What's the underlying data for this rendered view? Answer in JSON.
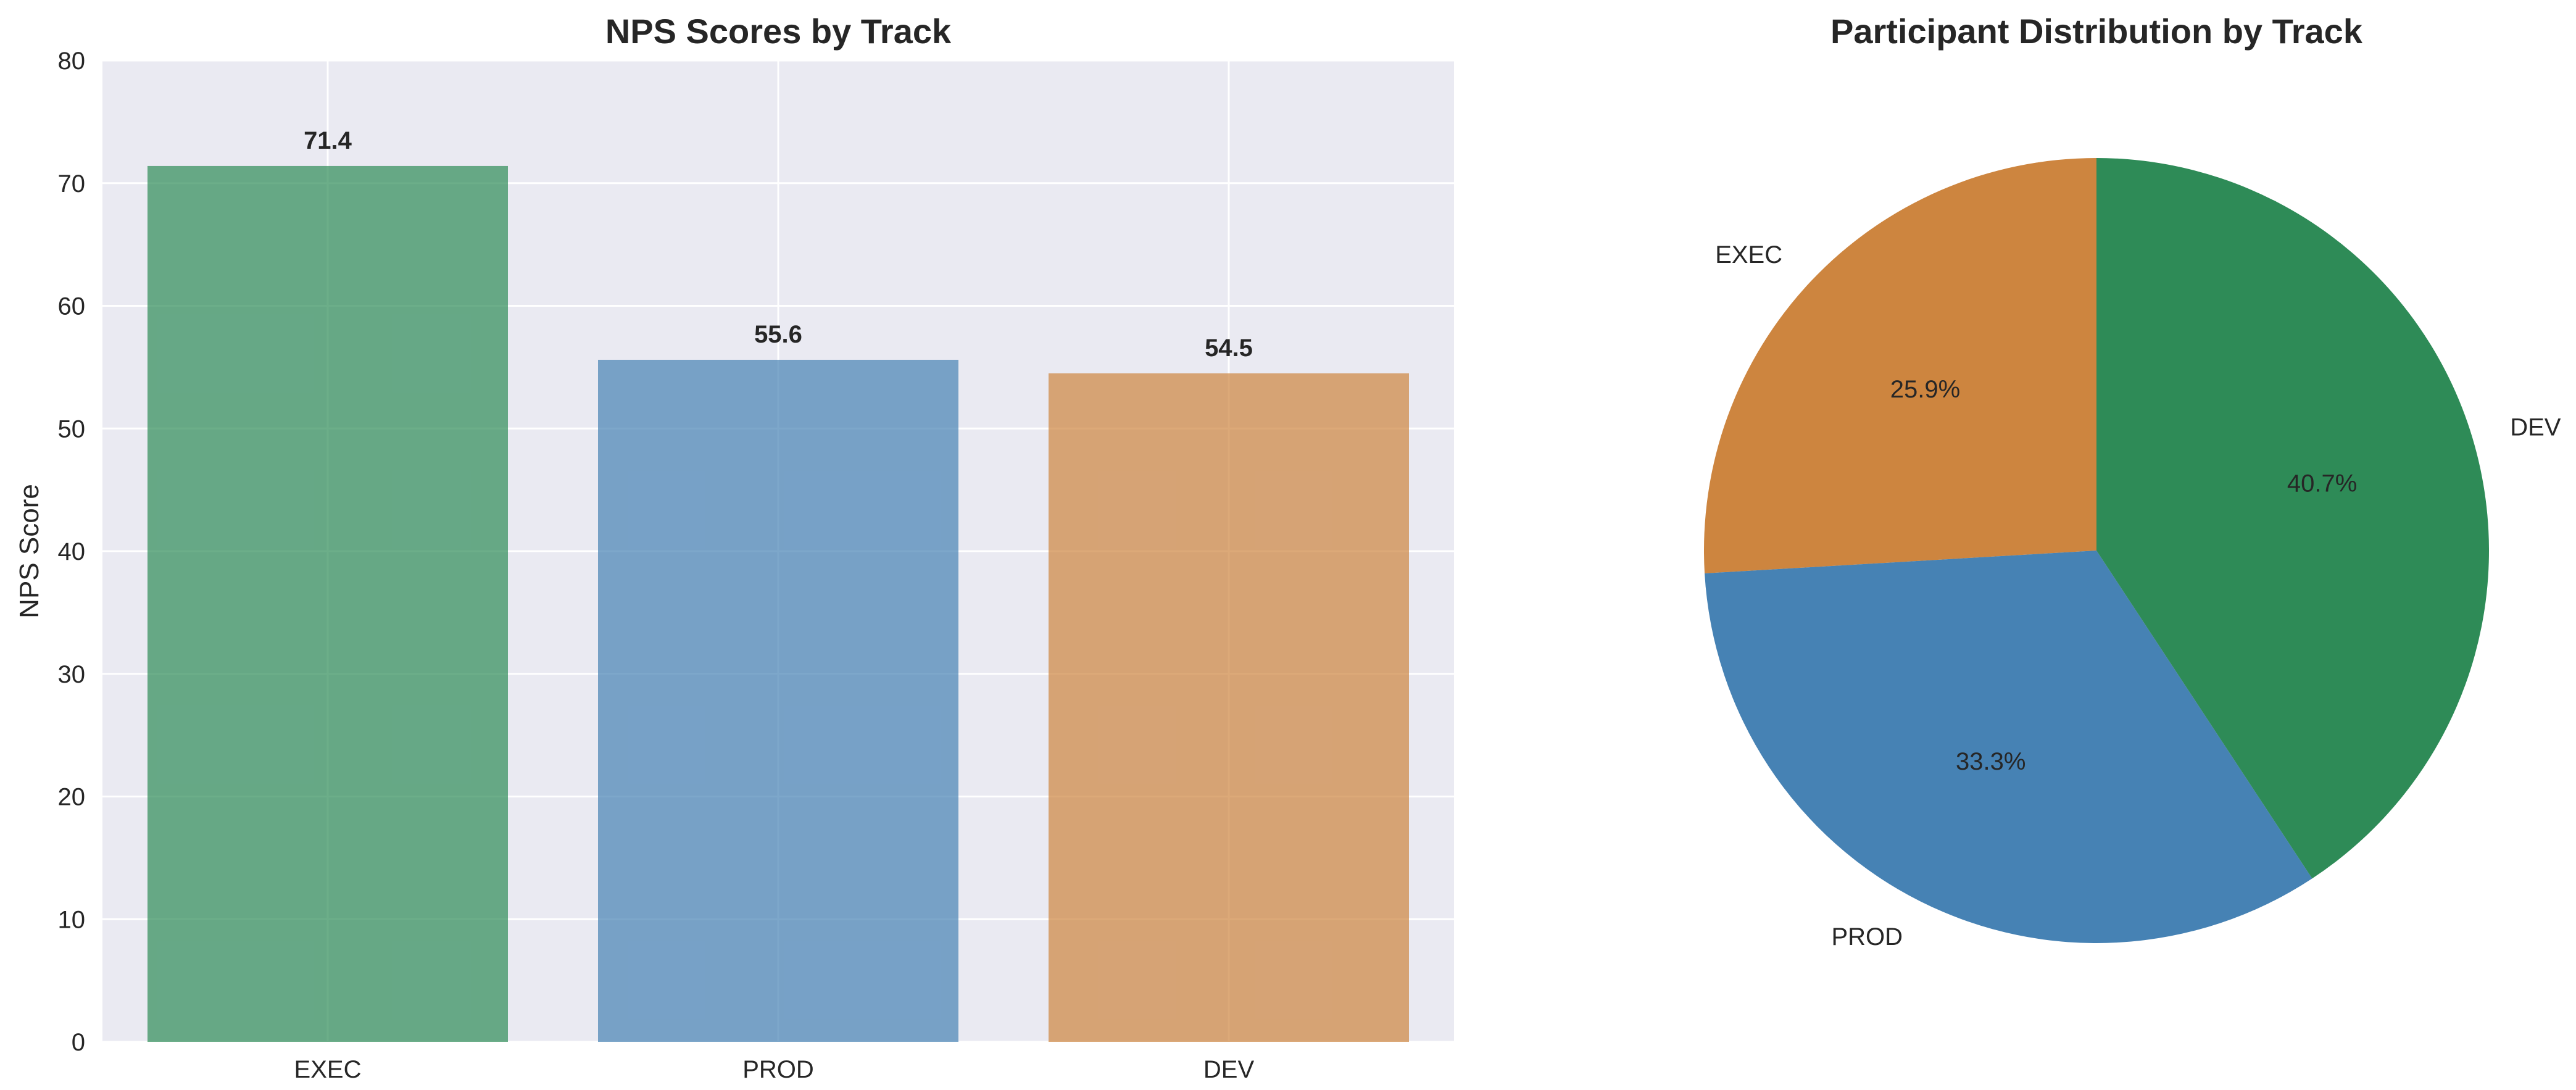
{
  "chart_data": [
    {
      "type": "bar",
      "title": "NPS Scores by Track",
      "xlabel": "",
      "ylabel": "NPS Score",
      "categories": [
        "EXEC",
        "PROD",
        "DEV"
      ],
      "values": [
        71.4,
        55.6,
        54.5
      ],
      "value_labels": [
        "71.4",
        "55.6",
        "54.5"
      ],
      "colors": [
        "#2e8b57",
        "#4682b4",
        "#cd853f"
      ],
      "ylim": [
        0,
        80
      ],
      "yticks": [
        0,
        10,
        20,
        30,
        40,
        50,
        60,
        70,
        80
      ],
      "grid": true,
      "background": "#eaeaf2"
    },
    {
      "type": "pie",
      "title": "Participant Distribution by Track",
      "labels": [
        "EXEC",
        "PROD",
        "DEV"
      ],
      "values": [
        25.9,
        33.3,
        40.7
      ],
      "pct_labels": [
        "25.9%",
        "33.3%",
        "40.7%"
      ],
      "colors": [
        "#cd853f",
        "#4682b4",
        "#2e8b57"
      ]
    }
  ]
}
